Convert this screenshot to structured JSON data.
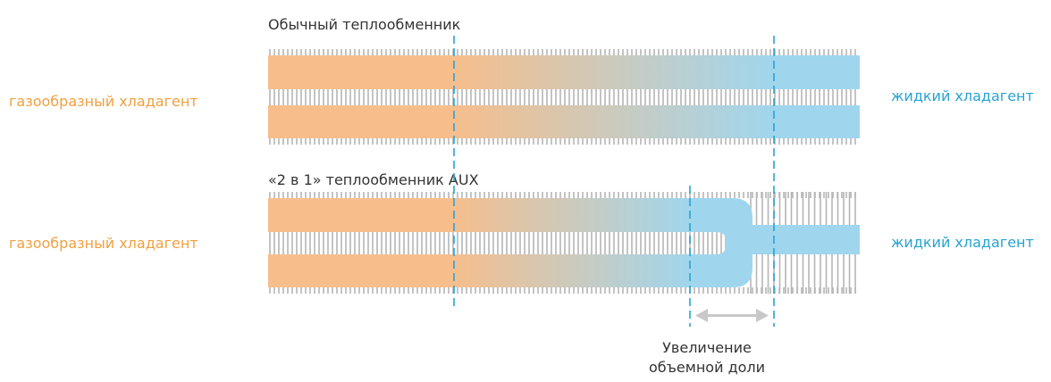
{
  "diagram": {
    "conventional": {
      "title": "Обычный теплообменник",
      "left_label": "газообразный хладагент",
      "right_label": "жидкий хладагент"
    },
    "aux": {
      "title": "«2 в 1» теплообменник AUX",
      "left_label": "газообразный хладагент",
      "right_label": "жидкий хладагент"
    },
    "annotation": {
      "line1": "Увеличение",
      "line2": "объемной доли"
    }
  },
  "colors": {
    "gas": "#f7be8c",
    "liquid": "#9fd6ee",
    "fin": "#b5b5b5",
    "dashed": "#27a3d3",
    "gas_text": "#f0a040",
    "liquid_text": "#27a3d3",
    "arrow": "#c8c8c8"
  }
}
